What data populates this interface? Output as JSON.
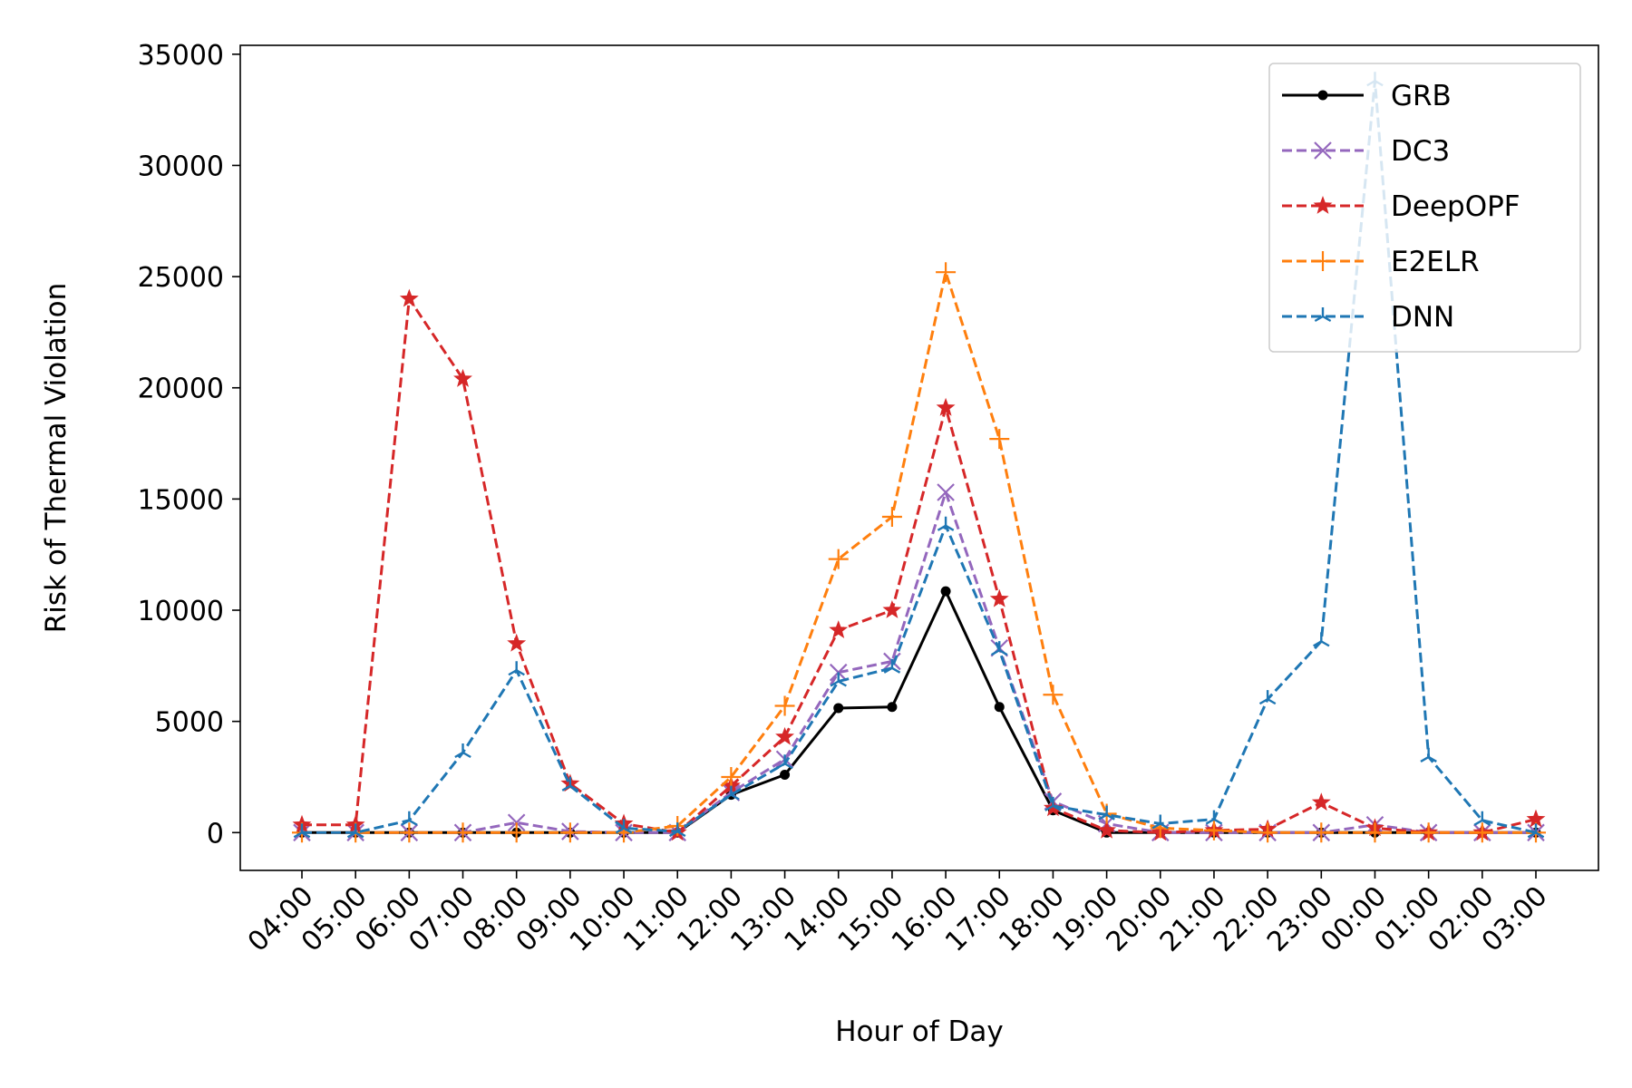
{
  "chart_data": {
    "type": "line",
    "xlabel": "Hour of Day",
    "ylabel": "Risk of Thermal Violation",
    "categories": [
      "04:00",
      "05:00",
      "06:00",
      "07:00",
      "08:00",
      "09:00",
      "10:00",
      "11:00",
      "12:00",
      "13:00",
      "14:00",
      "15:00",
      "16:00",
      "17:00",
      "18:00",
      "19:00",
      "20:00",
      "21:00",
      "22:00",
      "23:00",
      "00:00",
      "01:00",
      "02:00",
      "03:00"
    ],
    "ylim": [
      -1700,
      35400
    ],
    "yticks": [
      0,
      5000,
      10000,
      15000,
      20000,
      25000,
      30000,
      35000
    ],
    "grid": false,
    "legend_position": "top-right",
    "series": [
      {
        "name": "GRB",
        "color": "#000000",
        "dash": "solid",
        "marker": "dot",
        "values": [
          0,
          0,
          0,
          0,
          0,
          0,
          0,
          0,
          1700,
          2600,
          5600,
          5650,
          10850,
          5650,
          1000,
          0,
          0,
          0,
          0,
          0,
          0,
          0,
          0,
          0
        ]
      },
      {
        "name": "DC3",
        "color": "#9467bd",
        "dash": "dashed",
        "marker": "x",
        "values": [
          0,
          0,
          0,
          0,
          450,
          50,
          0,
          0,
          1800,
          3300,
          7200,
          7700,
          15300,
          8300,
          1400,
          400,
          0,
          0,
          0,
          0,
          350,
          0,
          0,
          0
        ]
      },
      {
        "name": "DeepOPF",
        "color": "#d62728",
        "dash": "dashed",
        "marker": "star",
        "values": [
          350,
          350,
          24000,
          20400,
          8500,
          2200,
          400,
          0,
          2100,
          4300,
          9100,
          10000,
          19100,
          10500,
          1100,
          100,
          0,
          100,
          150,
          1350,
          200,
          0,
          0,
          600
        ]
      },
      {
        "name": "E2ELR",
        "color": "#ff7f0e",
        "dash": "dashed",
        "marker": "plus",
        "values": [
          0,
          0,
          0,
          0,
          0,
          0,
          0,
          300,
          2500,
          5700,
          12300,
          14200,
          25200,
          17700,
          6200,
          850,
          200,
          100,
          0,
          0,
          0,
          0,
          0,
          0
        ]
      },
      {
        "name": "DNN",
        "color": "#1f77b4",
        "dash": "dashed",
        "marker": "tri",
        "values": [
          0,
          0,
          550,
          3600,
          7300,
          2100,
          200,
          50,
          1700,
          3100,
          6800,
          7400,
          13800,
          8200,
          1200,
          800,
          400,
          600,
          6000,
          8600,
          33800,
          3400,
          550,
          0
        ]
      }
    ]
  }
}
